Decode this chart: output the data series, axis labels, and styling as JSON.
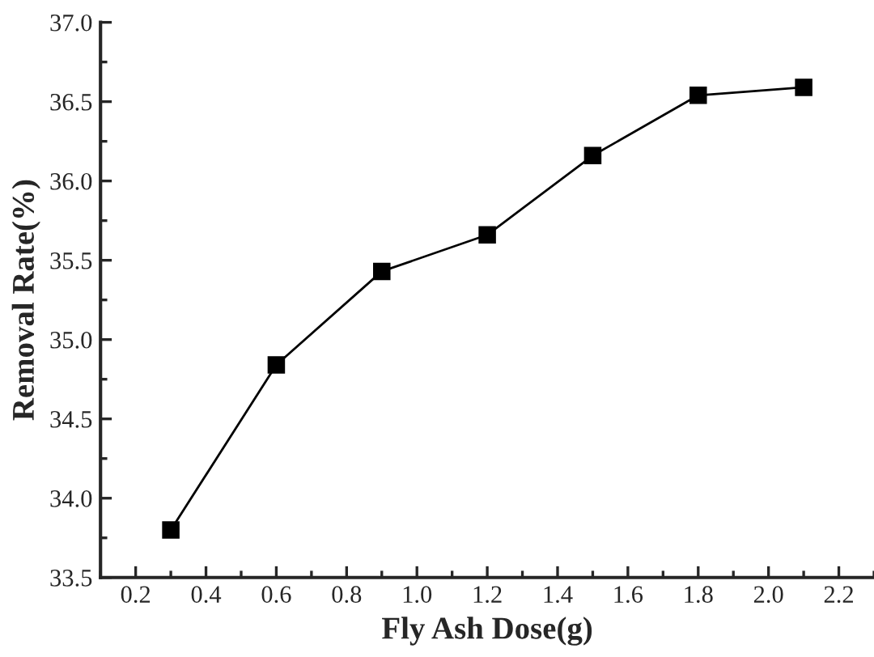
{
  "chart_data": {
    "type": "line",
    "xlabel": "Fly Ash Dose(g)",
    "ylabel": "Removal Rate(%)",
    "x": [
      0.3,
      0.6,
      0.9,
      1.2,
      1.5,
      1.8,
      2.1
    ],
    "series": [
      {
        "color": "#000000",
        "values": [
          33.8,
          34.84,
          35.43,
          35.66,
          36.16,
          36.54,
          36.59
        ]
      }
    ],
    "marker": "square",
    "line_style": "solid",
    "grid": false,
    "legend": false,
    "xlim": [
      0.1,
      2.3
    ],
    "xticks": [
      0.2,
      0.4,
      0.6,
      0.8,
      {
        "value": 1,
        "label": "1.0"
      },
      1.2,
      1.4,
      1.6,
      1.8,
      {
        "value": 2,
        "label": "2.0"
      },
      2.2
    ],
    "ylim": [
      33.5,
      37.0
    ],
    "yticks": [
      33.5,
      {
        "value": 34,
        "label": "34.0"
      },
      34.5,
      {
        "value": 35,
        "label": "35.0"
      },
      35.5,
      {
        "value": 36,
        "label": "36.0"
      },
      36.5,
      {
        "value": 37,
        "label": "37.0"
      }
    ]
  }
}
